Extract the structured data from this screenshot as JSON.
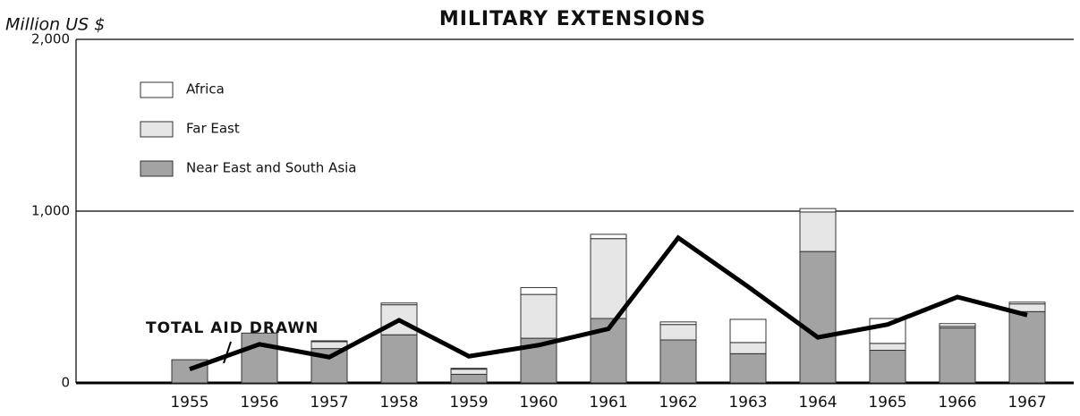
{
  "chart_data": {
    "type": "stacked_bar",
    "title": "MILITARY EXTENSIONS",
    "y_label": "Million US $",
    "categories": [
      "1955",
      "1956",
      "1957",
      "1958",
      "1959",
      "1960",
      "1961",
      "1962",
      "1963",
      "1964",
      "1965",
      "1966",
      "1967"
    ],
    "series": [
      {
        "name": "Near East and South Asia",
        "color": "#a3a3a3",
        "values": [
          135,
          290,
          200,
          280,
          50,
          260,
          375,
          250,
          170,
          765,
          190,
          320,
          415
        ]
      },
      {
        "name": "Far East",
        "color": "#e6e6e6",
        "values": [
          0,
          0,
          40,
          175,
          30,
          255,
          465,
          90,
          65,
          230,
          40,
          10,
          45
        ]
      },
      {
        "name": "Africa",
        "color": "#ffffff",
        "values": [
          0,
          0,
          5,
          10,
          5,
          40,
          25,
          15,
          135,
          20,
          145,
          15,
          10
        ]
      }
    ],
    "line": {
      "name": "TOTAL AID DRAWN",
      "color": "#000000",
      "values": [
        80,
        225,
        150,
        365,
        155,
        220,
        315,
        845,
        560,
        265,
        340,
        500,
        395
      ]
    },
    "ylim": [
      0,
      2000
    ],
    "yticks": [
      0,
      {
        "value": 1000,
        "label": "1,000"
      },
      {
        "value": 2000,
        "label": "2,000"
      }
    ],
    "grid": true
  }
}
